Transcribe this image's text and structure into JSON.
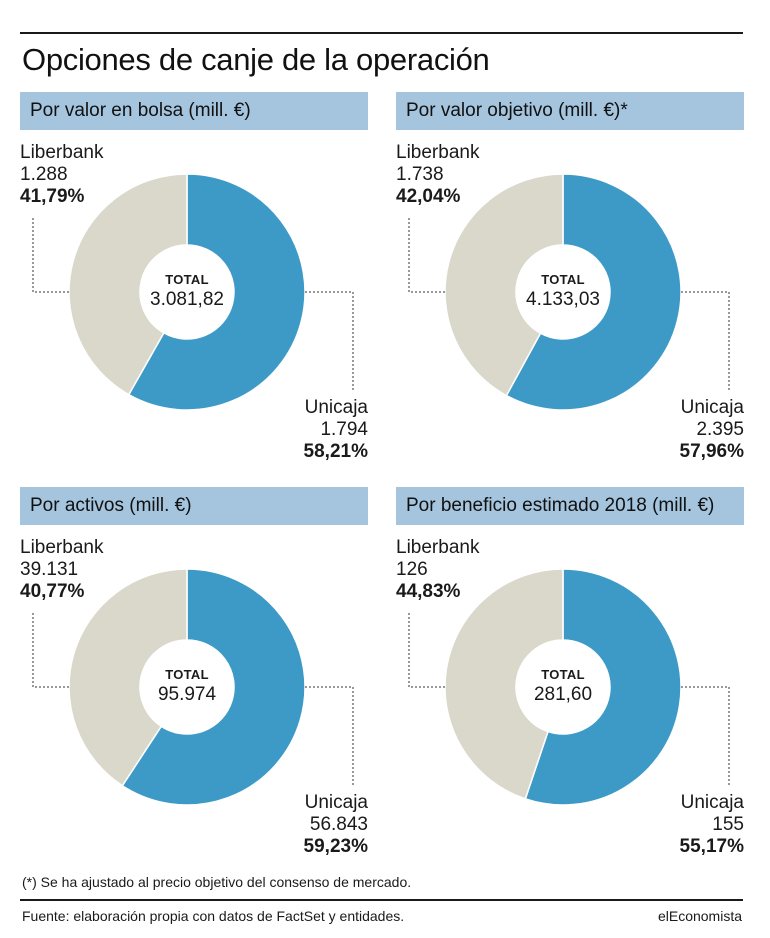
{
  "title": "Opciones de canje de la operación",
  "total_label": "TOTAL",
  "colors": {
    "liberbank": "#d9d8ca",
    "unicaja": "#3d9ac7",
    "header_bg": "#a5c5de"
  },
  "chart_data": [
    {
      "type": "pie",
      "title": "Por valor en bolsa (mill. €)",
      "total": "3.081,82",
      "slices": [
        {
          "name": "Liberbank",
          "value_label": "1.288",
          "value": 1288,
          "percent_label": "41,79%",
          "percent": 41.79
        },
        {
          "name": "Unicaja",
          "value_label": "1.794",
          "value": 1794,
          "percent_label": "58,21%",
          "percent": 58.21
        }
      ]
    },
    {
      "type": "pie",
      "title": "Por valor objetivo (mill. €)*",
      "total": "4.133,03",
      "slices": [
        {
          "name": "Liberbank",
          "value_label": "1.738",
          "value": 1738,
          "percent_label": "42,04%",
          "percent": 42.04
        },
        {
          "name": "Unicaja",
          "value_label": "2.395",
          "value": 2395,
          "percent_label": "57,96%",
          "percent": 57.96
        }
      ]
    },
    {
      "type": "pie",
      "title": "Por activos (mill. €)",
      "total": "95.974",
      "slices": [
        {
          "name": "Liberbank",
          "value_label": "39.131",
          "value": 39131,
          "percent_label": "40,77%",
          "percent": 40.77
        },
        {
          "name": "Unicaja",
          "value_label": "56.843",
          "value": 56843,
          "percent_label": "59,23%",
          "percent": 59.23
        }
      ]
    },
    {
      "type": "pie",
      "title": "Por beneficio estimado 2018 (mill. €)",
      "total": "281,60",
      "slices": [
        {
          "name": "Liberbank",
          "value_label": "126",
          "value": 126,
          "percent_label": "44,83%",
          "percent": 44.83
        },
        {
          "name": "Unicaja",
          "value_label": "155",
          "value": 155,
          "percent_label": "55,17%",
          "percent": 55.17
        }
      ]
    }
  ],
  "footnote": "(*) Se ha ajustado al precio objetivo del consenso de mercado.",
  "source": "Fuente: elaboración propia con datos de FactSet y entidades.",
  "brand": "elEconomista"
}
